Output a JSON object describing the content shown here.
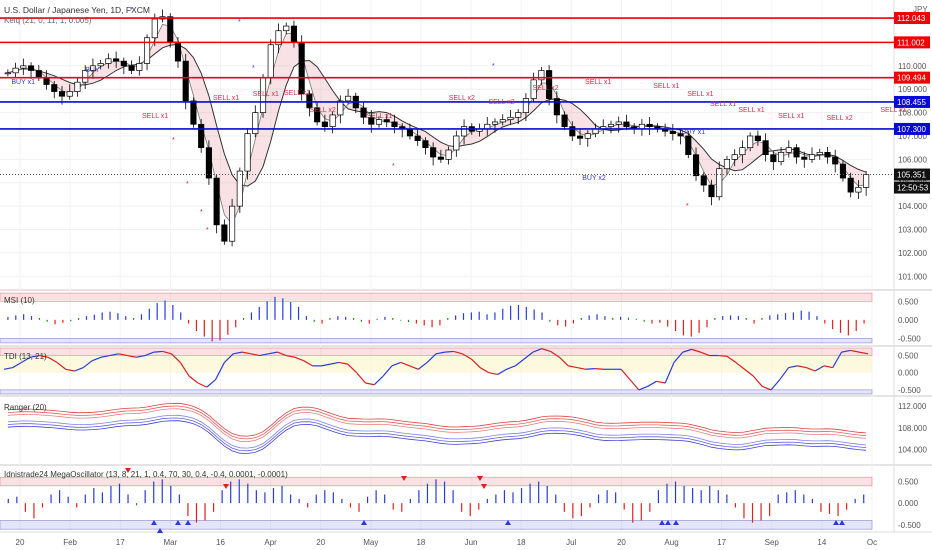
{
  "header": {
    "title": "U.S. Dollar / Japanese Yen, 1D, FXCM",
    "indicator": "Kelq (21, 0, 11, 1, 0.005)",
    "currency": "JPY"
  },
  "chart_data": [
    {
      "type": "candlestick",
      "title": "U.S. Dollar / Japanese Yen, 1D, FXCM",
      "ylim": [
        100.5,
        112.6
      ],
      "y_ticks": [
        "101.000",
        "102.000",
        "103.000",
        "104.000",
        "105.000",
        "106.000",
        "107.000",
        "108.000",
        "109.000",
        "110.000",
        "111.000",
        "112.000"
      ],
      "x_ticks": [
        "20",
        "Feb",
        "17",
        "Mar",
        "16",
        "Apr",
        "20",
        "May",
        "18",
        "Jun",
        "18",
        "Jul",
        "20",
        "Aug",
        "17",
        "Sep",
        "14",
        "Oc"
      ],
      "horizontal_lines": [
        {
          "price": 112.043,
          "label": "112.043",
          "color": "#f00000"
        },
        {
          "price": 111.002,
          "label": "111.002",
          "color": "#f00000"
        },
        {
          "price": 109.494,
          "label": "109.494",
          "color": "#f00000"
        },
        {
          "price": 108.455,
          "label": "108.455",
          "color": "#0a0ad6"
        },
        {
          "price": 107.3,
          "label": "107.300",
          "color": "#0a0ad6"
        }
      ],
      "last_price": {
        "value": "105.351",
        "time": "12:50:53"
      },
      "close_series": [
        109.7,
        109.9,
        110.0,
        109.8,
        109.5,
        109.2,
        108.9,
        108.7,
        108.9,
        109.3,
        109.8,
        110.0,
        110.1,
        110.3,
        110.2,
        110.0,
        109.8,
        110.1,
        111.2,
        112.0,
        112.1,
        111.0,
        110.2,
        108.5,
        107.5,
        106.5,
        105.2,
        103.2,
        102.5,
        104.0,
        105.5,
        107.1,
        108.0,
        109.5,
        110.9,
        111.5,
        111.7,
        111.0,
        108.8,
        108.2,
        107.6,
        107.4,
        107.9,
        108.5,
        108.7,
        108.2,
        107.8,
        107.5,
        107.7,
        107.6,
        107.4,
        107.3,
        107.0,
        106.8,
        106.5,
        106.1,
        106.0,
        106.4,
        107.0,
        107.4,
        107.2,
        107.3,
        107.5,
        107.6,
        107.7,
        107.8,
        108.0,
        108.6,
        109.4,
        109.8,
        108.6,
        107.9,
        107.4,
        107.0,
        106.9,
        107.1,
        107.3,
        107.4,
        107.5,
        107.6,
        107.4,
        107.3,
        107.5,
        107.4,
        107.3,
        107.2,
        107.1,
        107.0,
        106.2,
        105.3,
        104.9,
        104.4,
        105.6,
        106.0,
        106.2,
        106.5,
        107.0,
        106.8,
        106.2,
        105.9,
        106.3,
        106.5,
        106.1,
        106.0,
        106.2,
        106.3,
        106.1,
        105.8,
        105.2,
        104.6,
        104.8,
        105.351
      ],
      "signal_labels": [
        "BUY x1",
        "BUY",
        "SELL x1",
        "SELL x1",
        "SELL x1",
        "SELL x1",
        "SELL x2",
        "SELL x1",
        "SELL x2",
        "SELL x2",
        "SELL x2",
        "SELL x1",
        "SELL x1",
        "SELL x1",
        "SELL x1",
        "SELL x1",
        "SELL x1",
        "SELL x2",
        "SELL x1",
        "BUY x1",
        "BUY x2"
      ]
    },
    {
      "type": "bar",
      "title": "MSI (10)",
      "ylim": [
        -0.65,
        0.75
      ],
      "y_ticks": [
        "0.500",
        "0.000",
        "-0.500"
      ],
      "values": [
        0.08,
        0.12,
        0.15,
        0.1,
        0.05,
        -0.05,
        -0.12,
        -0.08,
        -0.04,
        0.05,
        0.1,
        0.14,
        0.2,
        0.22,
        0.18,
        0.1,
        0.05,
        0.15,
        0.3,
        0.45,
        0.52,
        0.4,
        0.2,
        -0.1,
        -0.3,
        -0.45,
        -0.58,
        -0.55,
        -0.4,
        -0.2,
        0.05,
        0.2,
        0.35,
        0.5,
        0.62,
        0.58,
        0.48,
        0.35,
        0.1,
        -0.05,
        -0.1,
        0.05,
        0.1,
        0.08,
        0.05,
        -0.05,
        -0.1,
        0.03,
        0.08,
        0.05,
        -0.02,
        -0.06,
        -0.1,
        -0.15,
        -0.2,
        -0.15,
        0.05,
        0.12,
        0.18,
        0.2,
        0.22,
        0.15,
        0.2,
        0.3,
        0.38,
        0.4,
        0.35,
        0.28,
        0.2,
        -0.05,
        -0.15,
        -0.18,
        -0.1,
        0.05,
        0.12,
        0.15,
        0.1,
        0.05,
        0.08,
        0.06,
        0.03,
        -0.05,
        -0.1,
        -0.08,
        -0.18,
        -0.3,
        -0.42,
        -0.45,
        -0.35,
        -0.2,
        0.05,
        0.1,
        0.12,
        0.1,
        0.05,
        -0.1,
        0.05,
        0.12,
        0.15,
        0.18,
        0.2,
        0.25,
        0.22,
        0.1,
        -0.1,
        -0.25,
        -0.35,
        -0.42,
        -0.3,
        -0.1
      ]
    },
    {
      "type": "line",
      "title": "TDI (13, 21)",
      "ylim": [
        -0.62,
        0.72
      ],
      "y_ticks": [
        "0.500",
        "0.000",
        "-0.500"
      ],
      "values": [
        0.1,
        0.15,
        0.3,
        0.45,
        0.5,
        0.45,
        0.3,
        0.1,
        0.05,
        0.15,
        0.35,
        0.45,
        0.5,
        0.55,
        0.5,
        0.45,
        0.5,
        0.6,
        0.62,
        0.55,
        0.3,
        -0.1,
        -0.3,
        -0.42,
        -0.2,
        0.3,
        0.55,
        0.6,
        0.55,
        0.5,
        0.55,
        0.6,
        0.5,
        0.45,
        0.35,
        0.2,
        0.2,
        0.25,
        0.3,
        0.25,
        0.0,
        -0.3,
        -0.35,
        -0.1,
        0.2,
        0.3,
        0.2,
        0.1,
        0.3,
        0.55,
        0.6,
        0.62,
        0.55,
        0.4,
        0.15,
        0.0,
        -0.05,
        0.1,
        0.2,
        0.4,
        0.6,
        0.7,
        0.62,
        0.45,
        0.2,
        0.15,
        0.1,
        0.12,
        0.1,
        0.1,
        0.1,
        -0.2,
        -0.5,
        -0.4,
        -0.25,
        -0.3,
        0.3,
        0.6,
        0.68,
        0.6,
        0.5,
        0.5,
        0.48,
        0.3,
        0.1,
        -0.1,
        -0.4,
        -0.5,
        -0.2,
        0.15,
        0.2,
        0.15,
        0.05,
        0.2,
        0.15,
        0.6,
        0.65,
        0.6,
        0.55
      ]
    },
    {
      "type": "line",
      "title": "Ranger (20)",
      "ylim": [
        101.5,
        113.5
      ],
      "y_ticks": [
        "112.000",
        "108.000",
        "104.000"
      ]
    },
    {
      "type": "bar",
      "title": "Idnistrade24 MegaOscillator (13, 8, 21, 1, 0.4, 70, 30, 0.4, -0.4, 0.0001, -0.0001)",
      "ylim": [
        -0.62,
        0.72
      ],
      "y_ticks": [
        "0.500",
        "0.000",
        "-0.500"
      ],
      "values": [
        0.1,
        0.15,
        -0.2,
        -0.35,
        -0.1,
        0.2,
        0.3,
        0.15,
        -0.1,
        0.2,
        0.35,
        0.25,
        0.4,
        0.45,
        0.2,
        -0.05,
        0.3,
        0.5,
        0.55,
        0.4,
        0.2,
        -0.3,
        -0.45,
        -0.4,
        -0.2,
        0.3,
        0.5,
        0.55,
        0.45,
        0.3,
        0.25,
        0.35,
        0.4,
        0.2,
        0.1,
        -0.1,
        0.2,
        0.3,
        0.25,
        0.1,
        -0.1,
        -0.2,
        0.15,
        0.3,
        0.2,
        -0.15,
        -0.2,
        0.1,
        0.3,
        0.45,
        0.55,
        0.5,
        0.3,
        -0.2,
        -0.3,
        -0.15,
        0.1,
        0.2,
        0.3,
        0.25,
        0.35,
        0.45,
        0.5,
        0.4,
        0.2,
        -0.2,
        -0.35,
        -0.3,
        -0.1,
        0.2,
        0.3,
        0.25,
        -0.15,
        -0.45,
        -0.4,
        -0.2,
        0.3,
        0.45,
        0.5,
        0.4,
        0.35,
        0.3,
        0.4,
        0.3,
        0.2,
        -0.1,
        -0.35,
        -0.45,
        -0.4,
        -0.3,
        0.2,
        0.25,
        0.3,
        0.2,
        0.1,
        -0.2,
        -0.25,
        -0.3,
        -0.15,
        0.1,
        0.2
      ]
    }
  ],
  "colors": {
    "resistance": "#f00000",
    "support": "#0a0ad6",
    "bull": "#2b3bd6",
    "bear": "#e02020",
    "neutral": "#1a8a1a",
    "sell_text": "#e0264b",
    "buy_text": "#3a3ad0"
  }
}
